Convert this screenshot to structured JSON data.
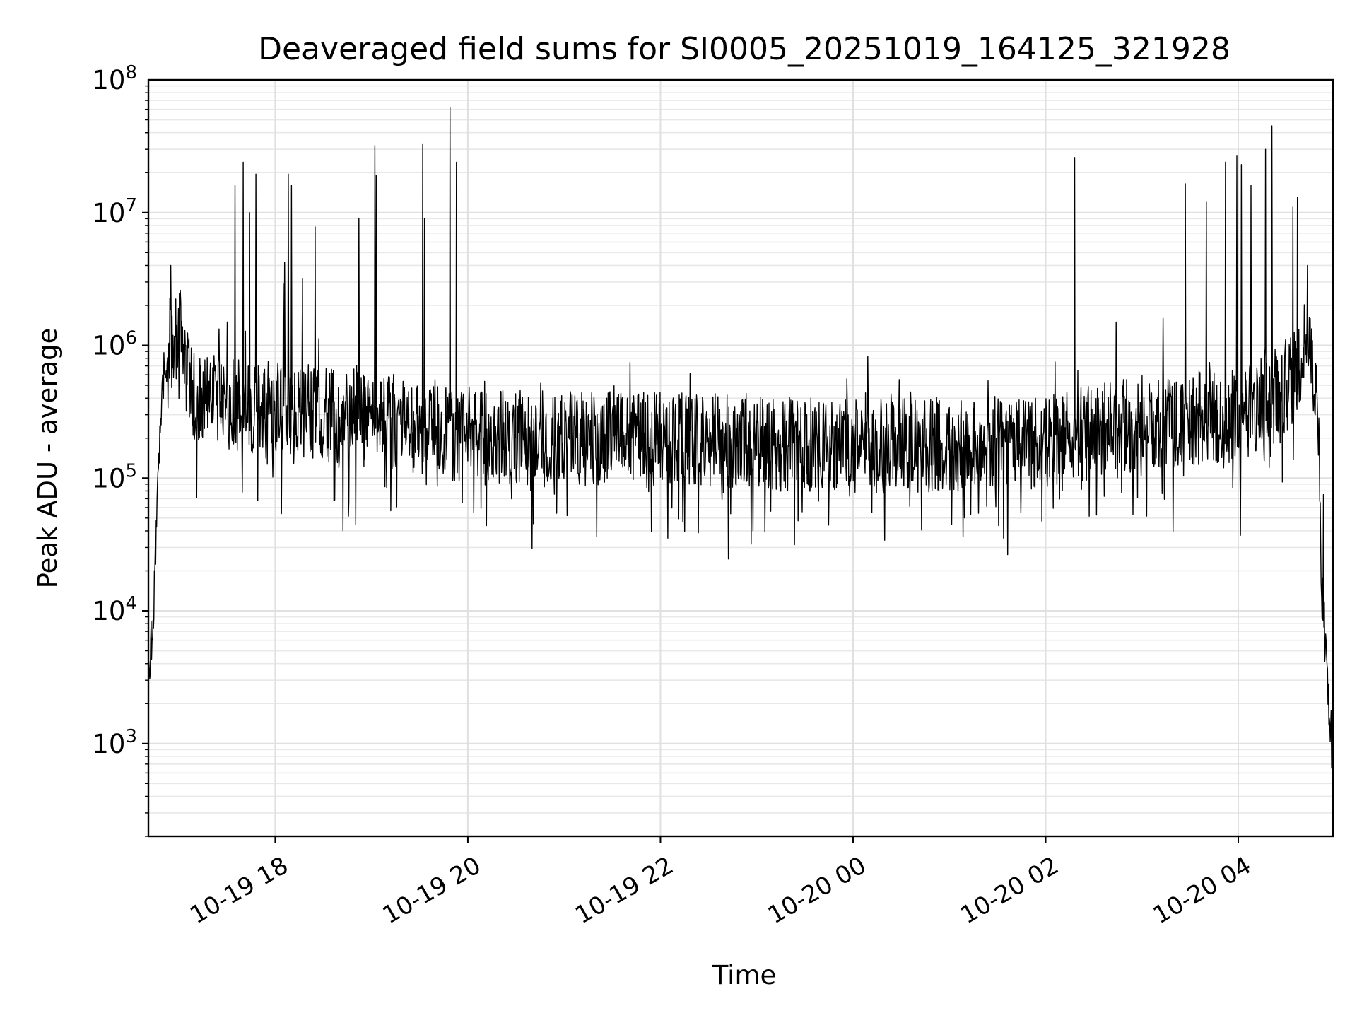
{
  "chart_data": {
    "type": "line",
    "title": "Deaveraged field sums for SI0005_20251019_164125_321928",
    "xlabel": "Time",
    "ylabel": "Peak ADU - average",
    "yscale": "log",
    "grid": true,
    "xlim": [
      "2025-10-19 16:41",
      "2025-10-20 04:59"
    ],
    "ylim": [
      200,
      100000000
    ],
    "xticks": [
      {
        "time": "2025-10-19 18:00",
        "label": "10-19 18"
      },
      {
        "time": "2025-10-19 20:00",
        "label": "10-19 20"
      },
      {
        "time": "2025-10-19 22:00",
        "label": "10-19 22"
      },
      {
        "time": "2025-10-20 00:00",
        "label": "10-20 00"
      },
      {
        "time": "2025-10-20 02:00",
        "label": "10-20 02"
      },
      {
        "time": "2025-10-20 04:00",
        "label": "10-20 04"
      }
    ],
    "yticks": [
      {
        "value": 1000,
        "base": "10",
        "exp": "3"
      },
      {
        "value": 10000,
        "base": "10",
        "exp": "4"
      },
      {
        "value": 100000,
        "base": "10",
        "exp": "5"
      },
      {
        "value": 1000000,
        "base": "10",
        "exp": "6"
      },
      {
        "value": 10000000,
        "base": "10",
        "exp": "7"
      },
      {
        "value": 100000000,
        "base": "10",
        "exp": "8"
      }
    ],
    "series": [
      {
        "color": "#000000",
        "baseline": [
          [
            "2025-10-19 16:41",
            3000
          ],
          [
            "2025-10-19 16:44",
            9000
          ],
          [
            "2025-10-19 16:48",
            200000
          ],
          [
            "2025-10-19 16:52",
            1000000
          ],
          [
            "2025-10-19 17:00",
            1200000
          ],
          [
            "2025-10-19 17:10",
            400000
          ],
          [
            "2025-10-19 18:00",
            330000
          ],
          [
            "2025-10-19 19:00",
            290000
          ],
          [
            "2025-10-19 20:00",
            200000
          ],
          [
            "2025-10-19 21:00",
            200000
          ],
          [
            "2025-10-19 22:00",
            200000
          ],
          [
            "2025-10-19 23:00",
            190000
          ],
          [
            "2025-10-20 00:00",
            170000
          ],
          [
            "2025-10-20 01:00",
            180000
          ],
          [
            "2025-10-20 02:00",
            190000
          ],
          [
            "2025-10-20 03:00",
            260000
          ],
          [
            "2025-10-20 04:00",
            300000
          ],
          [
            "2025-10-20 04:30",
            450000
          ],
          [
            "2025-10-20 04:44",
            1200000
          ],
          [
            "2025-10-20 04:50",
            300000
          ],
          [
            "2025-10-20 04:52",
            10000
          ],
          [
            "2025-10-20 04:55",
            4000
          ],
          [
            "2025-10-20 04:59",
            500
          ]
        ],
        "spikes": [
          [
            "2025-10-19 16:55",
            4000000
          ],
          [
            "2025-10-19 17:01",
            2600000
          ],
          [
            "2025-10-19 17:30",
            1500000
          ],
          [
            "2025-10-19 17:35",
            16000000
          ],
          [
            "2025-10-19 17:40",
            24000000
          ],
          [
            "2025-10-19 17:44",
            10000000
          ],
          [
            "2025-10-19 17:48",
            19500000
          ],
          [
            "2025-10-19 18:05",
            2900000
          ],
          [
            "2025-10-19 18:06",
            4200000
          ],
          [
            "2025-10-19 18:08",
            19500000
          ],
          [
            "2025-10-19 18:10",
            16000000
          ],
          [
            "2025-10-19 18:17",
            3200000
          ],
          [
            "2025-10-19 18:25",
            7800000
          ],
          [
            "2025-10-19 18:52",
            9000000
          ],
          [
            "2025-10-19 19:02",
            32000000
          ],
          [
            "2025-10-19 19:03",
            19000000
          ],
          [
            "2025-10-19 19:32",
            33000000
          ],
          [
            "2025-10-19 19:33",
            9000000
          ],
          [
            "2025-10-19 19:49",
            62000000
          ],
          [
            "2025-10-19 19:53",
            24000000
          ],
          [
            "2025-10-20 02:18",
            26000000
          ],
          [
            "2025-10-20 02:44",
            1500000
          ],
          [
            "2025-10-20 03:13",
            1600000
          ],
          [
            "2025-10-20 03:27",
            16500000
          ],
          [
            "2025-10-20 03:40",
            12000000
          ],
          [
            "2025-10-20 03:52",
            24000000
          ],
          [
            "2025-10-20 03:59",
            27000000
          ],
          [
            "2025-10-20 04:02",
            23000000
          ],
          [
            "2025-10-20 04:08",
            16000000
          ],
          [
            "2025-10-20 04:17",
            30000000
          ],
          [
            "2025-10-20 04:21",
            45000000
          ],
          [
            "2025-10-20 04:34",
            11000000
          ],
          [
            "2025-10-20 04:37",
            13000000
          ],
          [
            "2025-10-20 04:43",
            4000000
          ],
          [
            "2025-10-20 04:53",
            75000
          ]
        ]
      }
    ]
  }
}
